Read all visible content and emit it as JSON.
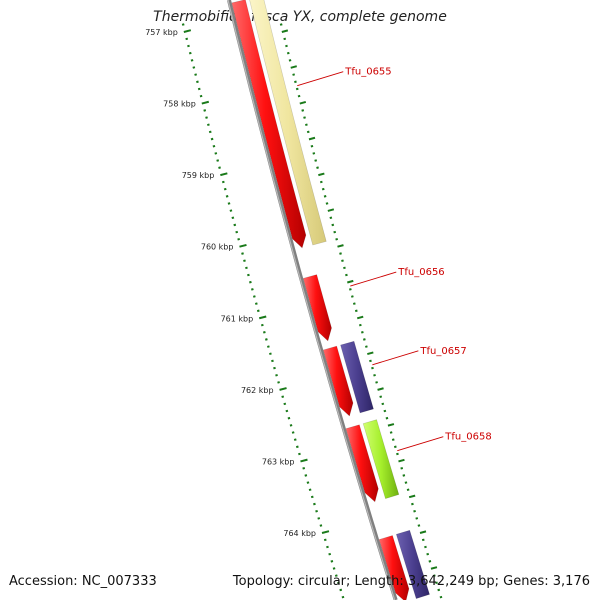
{
  "title": "Thermobifida fusca YX, complete genome",
  "footer": {
    "accession": "Accession: NC_007333",
    "topology": "Topology: circular; Length: 3,642,249 bp; Genes: 3,176"
  },
  "colors": {
    "backbone": "#808080",
    "cds_forward": "#ff0000",
    "gene_label": "#cc0000",
    "tick": "#1a7a1a",
    "feature_tan": "#f0e6a0",
    "feature_purple": "#4b3f8f",
    "feature_green": "#a6ef2c"
  },
  "scale_ticks": [
    {
      "kb": 757,
      "label": "757 kbp"
    },
    {
      "kb": 758,
      "label": "758 kbp"
    },
    {
      "kb": 759,
      "label": "759 kbp"
    },
    {
      "kb": 760,
      "label": "760 kbp"
    },
    {
      "kb": 761,
      "label": "761 kbp"
    },
    {
      "kb": 762,
      "label": "762 kbp"
    },
    {
      "kb": 763,
      "label": "763 kbp"
    },
    {
      "kb": 764,
      "label": "764 kbp"
    }
  ],
  "gene_labels": [
    {
      "name": "Tfu_0655",
      "kb": 757.75
    },
    {
      "name": "Tfu_0656",
      "kb": 760.55
    },
    {
      "name": "Tfu_0657",
      "kb": 761.65
    },
    {
      "name": "Tfu_0658",
      "kb": 762.85
    }
  ],
  "features": [
    {
      "kind": "cds",
      "start_kb": 756.6,
      "end_kb": 760.05,
      "color": "red"
    },
    {
      "kind": "cds",
      "start_kb": 760.45,
      "end_kb": 761.35,
      "color": "red"
    },
    {
      "kind": "cds",
      "start_kb": 761.45,
      "end_kb": 762.4,
      "color": "red"
    },
    {
      "kind": "cds",
      "start_kb": 762.55,
      "end_kb": 763.6,
      "color": "red"
    },
    {
      "kind": "cds",
      "start_kb": 764.1,
      "end_kb": 765.0,
      "color": "red"
    },
    {
      "kind": "feature",
      "start_kb": 756.6,
      "end_kb": 760.05,
      "color": "tan"
    },
    {
      "kind": "feature",
      "start_kb": 761.45,
      "end_kb": 762.4,
      "color": "purple"
    },
    {
      "kind": "feature",
      "start_kb": 762.55,
      "end_kb": 763.6,
      "color": "green"
    },
    {
      "kind": "feature",
      "start_kb": 764.1,
      "end_kb": 765.0,
      "color": "purple"
    }
  ]
}
